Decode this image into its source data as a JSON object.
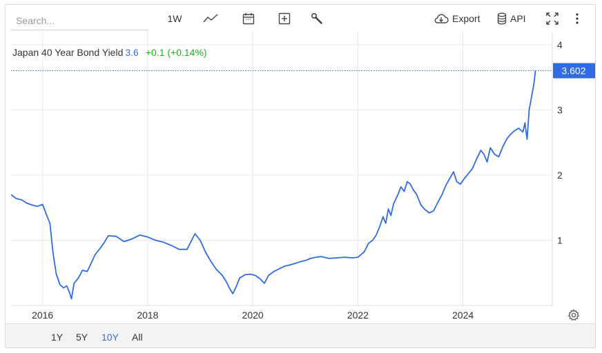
{
  "toolbar": {
    "search_placeholder": "Search...",
    "interval_label": "1W",
    "export_label": "Export",
    "api_label": "API",
    "icons": [
      "line-chart-icon",
      "calendar-icon",
      "add-box-icon",
      "wrench-icon",
      "cloud-download-icon",
      "database-icon",
      "fullscreen-icon",
      "more-vert-icon"
    ]
  },
  "legend": {
    "name": "Japan 40 Year Bond Yield",
    "value": "3.6",
    "change": "+0.1 (+0.14%)"
  },
  "colors": {
    "line": "#2f6be3",
    "last_price_badge": "#2f6be3",
    "change_positive": "#1db31d",
    "active_range": "#3a6fd8",
    "grid": "#e9e9e9"
  },
  "range_buttons": [
    {
      "label": "1Y",
      "active": false
    },
    {
      "label": "5Y",
      "active": false
    },
    {
      "label": "10Y",
      "active": true
    },
    {
      "label": "All",
      "active": false
    }
  ],
  "chart_data": {
    "type": "line",
    "title": "",
    "xlabel": "",
    "ylabel": "",
    "last_value_label": "3.602",
    "x_ticks": [
      "2016",
      "2018",
      "2020",
      "2022",
      "2024"
    ],
    "y_ticks": [
      1,
      2,
      3,
      4
    ],
    "ylim": [
      0.0,
      4.2
    ],
    "xlim": [
      2015.4,
      2025.7
    ],
    "grid": true,
    "y_axis_side": "right",
    "series": [
      {
        "points": [
          [
            2015.4,
            1.7
          ],
          [
            2015.5,
            1.64
          ],
          [
            2015.6,
            1.62
          ],
          [
            2015.7,
            1.57
          ],
          [
            2015.8,
            1.54
          ],
          [
            2015.9,
            1.52
          ],
          [
            2016.0,
            1.55
          ],
          [
            2016.08,
            1.38
          ],
          [
            2016.14,
            1.26
          ],
          [
            2016.2,
            0.8
          ],
          [
            2016.26,
            0.48
          ],
          [
            2016.33,
            0.32
          ],
          [
            2016.4,
            0.27
          ],
          [
            2016.46,
            0.3
          ],
          [
            2016.52,
            0.18
          ],
          [
            2016.55,
            0.1
          ],
          [
            2016.6,
            0.34
          ],
          [
            2016.68,
            0.42
          ],
          [
            2016.76,
            0.54
          ],
          [
            2016.85,
            0.52
          ],
          [
            2016.92,
            0.64
          ],
          [
            2017.0,
            0.78
          ],
          [
            2017.08,
            0.86
          ],
          [
            2017.17,
            0.96
          ],
          [
            2017.25,
            1.07
          ],
          [
            2017.4,
            1.06
          ],
          [
            2017.55,
            0.98
          ],
          [
            2017.7,
            1.02
          ],
          [
            2017.85,
            1.08
          ],
          [
            2018.0,
            1.05
          ],
          [
            2018.15,
            1.0
          ],
          [
            2018.3,
            0.97
          ],
          [
            2018.45,
            0.92
          ],
          [
            2018.6,
            0.86
          ],
          [
            2018.75,
            0.86
          ],
          [
            2018.9,
            1.1
          ],
          [
            2019.0,
            1.0
          ],
          [
            2019.1,
            0.82
          ],
          [
            2019.2,
            0.68
          ],
          [
            2019.3,
            0.56
          ],
          [
            2019.42,
            0.46
          ],
          [
            2019.5,
            0.36
          ],
          [
            2019.56,
            0.26
          ],
          [
            2019.62,
            0.18
          ],
          [
            2019.68,
            0.28
          ],
          [
            2019.75,
            0.42
          ],
          [
            2019.85,
            0.47
          ],
          [
            2019.95,
            0.48
          ],
          [
            2020.05,
            0.46
          ],
          [
            2020.15,
            0.4
          ],
          [
            2020.22,
            0.34
          ],
          [
            2020.3,
            0.46
          ],
          [
            2020.4,
            0.52
          ],
          [
            2020.5,
            0.56
          ],
          [
            2020.6,
            0.6
          ],
          [
            2020.75,
            0.63
          ],
          [
            2020.9,
            0.67
          ],
          [
            2021.0,
            0.69
          ],
          [
            2021.1,
            0.72
          ],
          [
            2021.2,
            0.74
          ],
          [
            2021.3,
            0.75
          ],
          [
            2021.45,
            0.72
          ],
          [
            2021.6,
            0.73
          ],
          [
            2021.75,
            0.74
          ],
          [
            2021.9,
            0.73
          ],
          [
            2022.0,
            0.74
          ],
          [
            2022.12,
            0.82
          ],
          [
            2022.2,
            0.95
          ],
          [
            2022.28,
            1.0
          ],
          [
            2022.35,
            1.08
          ],
          [
            2022.42,
            1.22
          ],
          [
            2022.48,
            1.36
          ],
          [
            2022.53,
            1.26
          ],
          [
            2022.58,
            1.48
          ],
          [
            2022.63,
            1.38
          ],
          [
            2022.68,
            1.56
          ],
          [
            2022.75,
            1.68
          ],
          [
            2022.82,
            1.82
          ],
          [
            2022.88,
            1.75
          ],
          [
            2022.94,
            1.9
          ],
          [
            2023.0,
            1.86
          ],
          [
            2023.05,
            1.78
          ],
          [
            2023.12,
            1.7
          ],
          [
            2023.2,
            1.54
          ],
          [
            2023.28,
            1.47
          ],
          [
            2023.36,
            1.42
          ],
          [
            2023.44,
            1.45
          ],
          [
            2023.52,
            1.58
          ],
          [
            2023.6,
            1.7
          ],
          [
            2023.68,
            1.85
          ],
          [
            2023.75,
            1.95
          ],
          [
            2023.82,
            2.05
          ],
          [
            2023.88,
            1.9
          ],
          [
            2023.95,
            1.86
          ],
          [
            2024.02,
            1.94
          ],
          [
            2024.1,
            2.02
          ],
          [
            2024.18,
            2.1
          ],
          [
            2024.26,
            2.25
          ],
          [
            2024.34,
            2.38
          ],
          [
            2024.4,
            2.32
          ],
          [
            2024.46,
            2.2
          ],
          [
            2024.52,
            2.42
          ],
          [
            2024.6,
            2.32
          ],
          [
            2024.68,
            2.28
          ],
          [
            2024.76,
            2.44
          ],
          [
            2024.84,
            2.56
          ],
          [
            2024.9,
            2.62
          ],
          [
            2024.98,
            2.68
          ],
          [
            2025.06,
            2.72
          ],
          [
            2025.14,
            2.66
          ],
          [
            2025.18,
            2.8
          ],
          [
            2025.22,
            2.55
          ],
          [
            2025.26,
            3.0
          ],
          [
            2025.3,
            3.18
          ],
          [
            2025.35,
            3.4
          ],
          [
            2025.38,
            3.602
          ]
        ]
      }
    ]
  }
}
